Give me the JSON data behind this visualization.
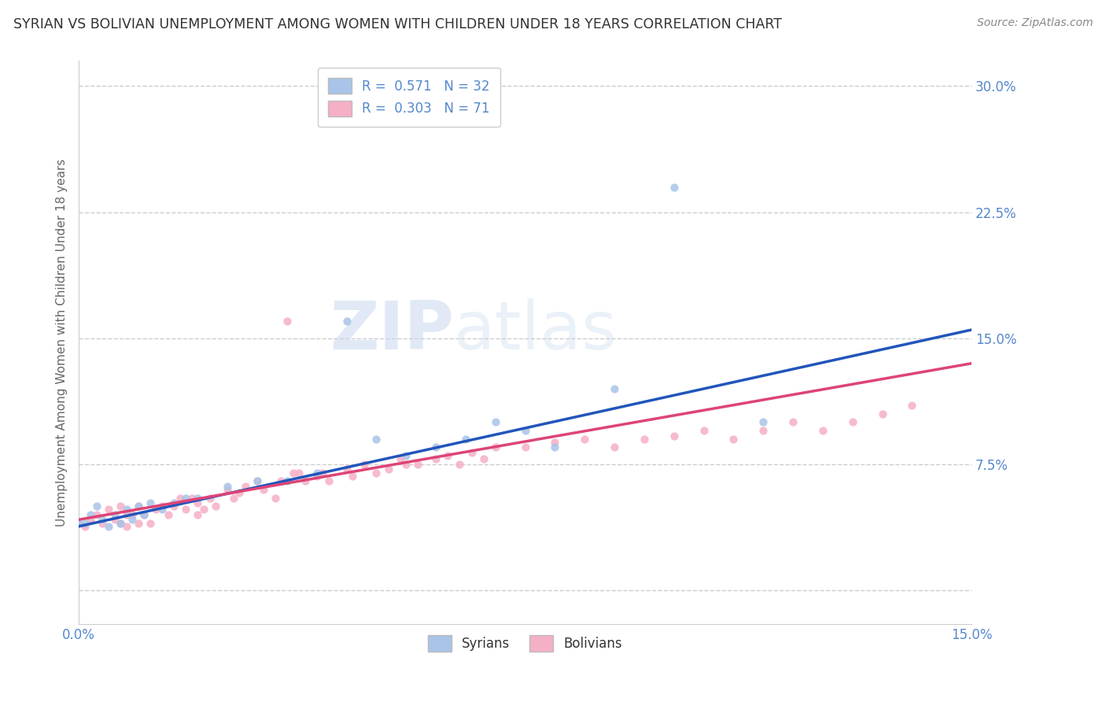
{
  "title": "SYRIAN VS BOLIVIAN UNEMPLOYMENT AMONG WOMEN WITH CHILDREN UNDER 18 YEARS CORRELATION CHART",
  "source": "Source: ZipAtlas.com",
  "ylabel": "Unemployment Among Women with Children Under 18 years",
  "xlim": [
    0.0,
    0.15
  ],
  "ylim": [
    -0.02,
    0.315
  ],
  "xtick_labels": [
    "0.0%",
    "15.0%"
  ],
  "yticks": [
    0.0,
    0.075,
    0.15,
    0.225,
    0.3
  ],
  "ytick_labels": [
    "",
    "7.5%",
    "15.0%",
    "22.5%",
    "30.0%"
  ],
  "syrian_R": 0.571,
  "syrian_N": 32,
  "bolivian_R": 0.303,
  "bolivian_N": 71,
  "syrian_color": "#a8c4e8",
  "bolivian_color": "#f5b0c5",
  "syrian_line_color": "#2255bb",
  "bolivian_line_color": "#dd4477",
  "background_color": "#ffffff",
  "title_color": "#333333",
  "tick_color": "#5588cc",
  "grid_color": "#cccccc",
  "watermark_zip": "ZIP",
  "watermark_atlas": "atlas",
  "syrians_x": [
    0.0,
    0.001,
    0.002,
    0.003,
    0.004,
    0.005,
    0.006,
    0.007,
    0.008,
    0.009,
    0.01,
    0.011,
    0.012,
    0.014,
    0.016,
    0.018,
    0.02,
    0.025,
    0.03,
    0.035,
    0.04,
    0.045,
    0.05,
    0.055,
    0.06,
    0.065,
    0.07,
    0.075,
    0.08,
    0.09,
    0.1,
    0.115
  ],
  "syrians_y": [
    0.04,
    0.04,
    0.045,
    0.05,
    0.042,
    0.038,
    0.045,
    0.04,
    0.048,
    0.042,
    0.05,
    0.045,
    0.052,
    0.048,
    0.052,
    0.055,
    0.055,
    0.062,
    0.065,
    0.065,
    0.07,
    0.16,
    0.09,
    0.08,
    0.085,
    0.09,
    0.1,
    0.095,
    0.085,
    0.12,
    0.24,
    0.1
  ],
  "bolivians_x": [
    0.0,
    0.001,
    0.002,
    0.003,
    0.004,
    0.005,
    0.006,
    0.007,
    0.007,
    0.008,
    0.008,
    0.009,
    0.01,
    0.01,
    0.011,
    0.012,
    0.013,
    0.014,
    0.015,
    0.016,
    0.017,
    0.018,
    0.019,
    0.02,
    0.02,
    0.021,
    0.022,
    0.023,
    0.025,
    0.026,
    0.027,
    0.028,
    0.03,
    0.031,
    0.033,
    0.034,
    0.035,
    0.036,
    0.037,
    0.038,
    0.04,
    0.041,
    0.042,
    0.045,
    0.046,
    0.048,
    0.05,
    0.052,
    0.054,
    0.055,
    0.057,
    0.06,
    0.062,
    0.064,
    0.066,
    0.068,
    0.07,
    0.075,
    0.08,
    0.085,
    0.09,
    0.095,
    0.1,
    0.105,
    0.11,
    0.115,
    0.12,
    0.125,
    0.13,
    0.135,
    0.14
  ],
  "bolivians_y": [
    0.04,
    0.038,
    0.042,
    0.045,
    0.04,
    0.048,
    0.042,
    0.05,
    0.04,
    0.045,
    0.038,
    0.045,
    0.04,
    0.05,
    0.045,
    0.04,
    0.048,
    0.05,
    0.045,
    0.05,
    0.055,
    0.048,
    0.055,
    0.045,
    0.052,
    0.048,
    0.055,
    0.05,
    0.06,
    0.055,
    0.058,
    0.062,
    0.065,
    0.06,
    0.055,
    0.065,
    0.16,
    0.07,
    0.07,
    0.065,
    0.068,
    0.07,
    0.065,
    0.072,
    0.068,
    0.075,
    0.07,
    0.072,
    0.078,
    0.075,
    0.075,
    0.078,
    0.08,
    0.075,
    0.082,
    0.078,
    0.085,
    0.085,
    0.088,
    0.09,
    0.085,
    0.09,
    0.092,
    0.095,
    0.09,
    0.095,
    0.1,
    0.095,
    0.1,
    0.105,
    0.11
  ]
}
